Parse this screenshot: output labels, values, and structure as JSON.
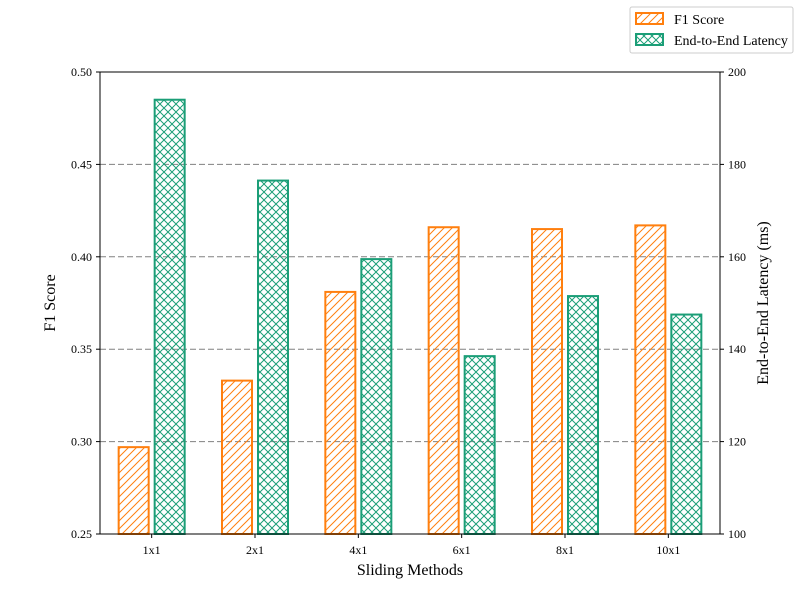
{
  "chart_data": {
    "type": "bar",
    "categories": [
      "1x1",
      "2x1",
      "4x1",
      "6x1",
      "8x1",
      "10x1"
    ],
    "series": [
      {
        "name": "F1 Score",
        "axis": "left",
        "values": [
          0.297,
          0.333,
          0.381,
          0.416,
          0.415,
          0.417
        ],
        "color": "#ff7f0e",
        "pattern": "diagonal-hatch"
      },
      {
        "name": "End-to-End Latency",
        "axis": "right",
        "values": [
          194,
          176.5,
          159.5,
          138.5,
          151.5,
          147.5
        ],
        "color": "#1b9e77",
        "pattern": "crosshatch"
      }
    ],
    "xlabel": "Sliding Methods",
    "ylabel_left": "F1 Score",
    "ylabel_right": "End-to-End Latency (ms)",
    "ylim_left": [
      0.25,
      0.5
    ],
    "yticks_left": [
      "0.25",
      "0.30",
      "0.35",
      "0.40",
      "0.45",
      "0.50"
    ],
    "ylim_right": [
      100,
      200
    ],
    "yticks_right": [
      "100",
      "120",
      "140",
      "160",
      "180",
      "200"
    ],
    "grid": "horizontal dashed",
    "legend_placement": "top-right outside"
  }
}
